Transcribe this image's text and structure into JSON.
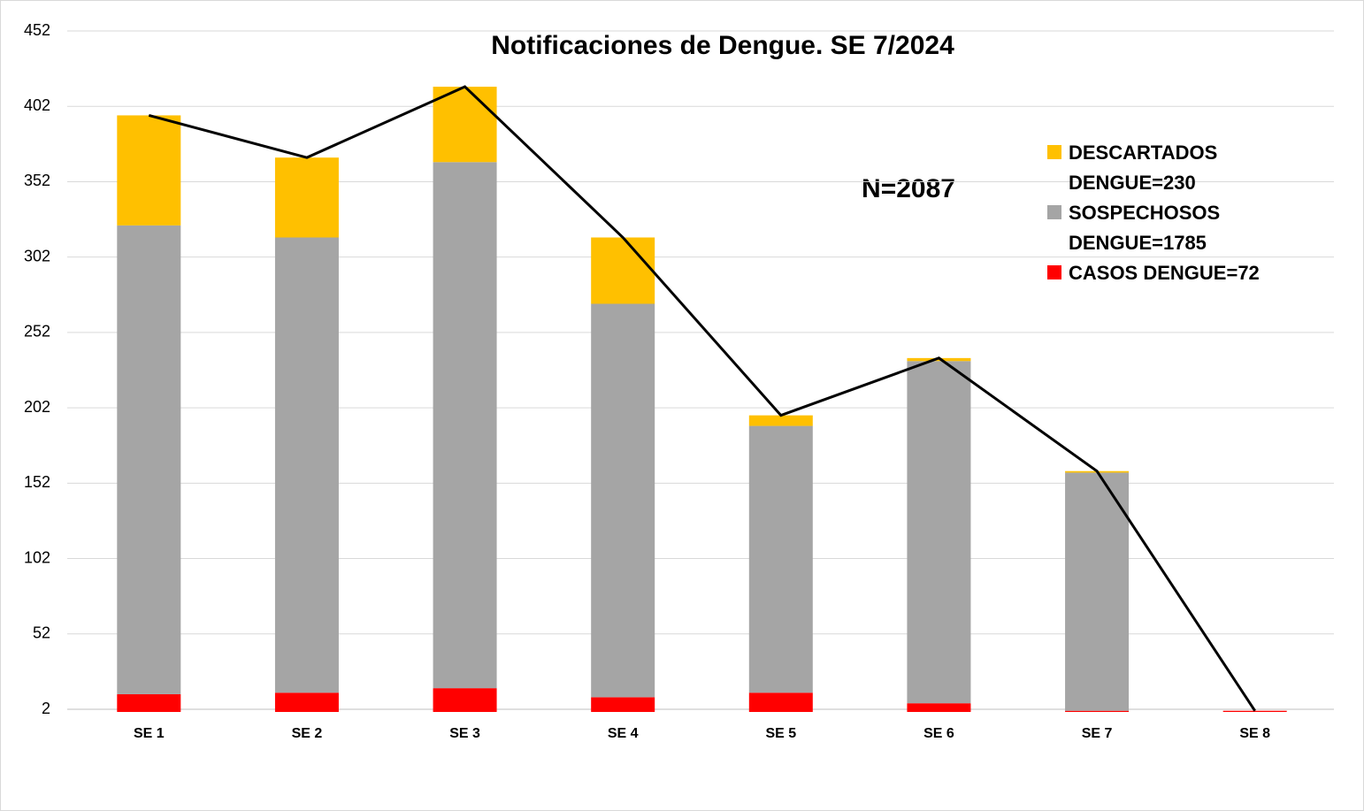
{
  "chart_data": {
    "type": "bar",
    "stacked": true,
    "title": "Notificaciones de Dengue. SE 7/2024",
    "annotation": "N=2087",
    "categories": [
      "SE 1",
      "SE 2",
      "SE 3",
      "SE 4",
      "SE 5",
      "SE 6",
      "SE 7",
      "SE 8"
    ],
    "series": [
      {
        "name": "CASOS DENGUE=72",
        "color": "#ff0000",
        "values": [
          12,
          13,
          16,
          10,
          13,
          6,
          1,
          1
        ]
      },
      {
        "name": "SOSPECHOSOS DENGUE=1785",
        "color": "#a5a5a5",
        "values": [
          311,
          302,
          349,
          261,
          177,
          227,
          158,
          0
        ]
      },
      {
        "name": "DESCARTADOS DENGUE=230",
        "color": "#ffc000",
        "values": [
          73,
          53,
          50,
          44,
          7,
          2,
          1,
          0
        ]
      },
      {
        "type": "line",
        "color": "#000000",
        "values": [
          396,
          368,
          415,
          315,
          197,
          235,
          160,
          1
        ]
      }
    ],
    "ylim": [
      2,
      452
    ],
    "yticks": [
      2,
      52,
      102,
      152,
      202,
      252,
      302,
      352,
      402,
      452
    ],
    "grid": true,
    "legend": "upper right"
  }
}
